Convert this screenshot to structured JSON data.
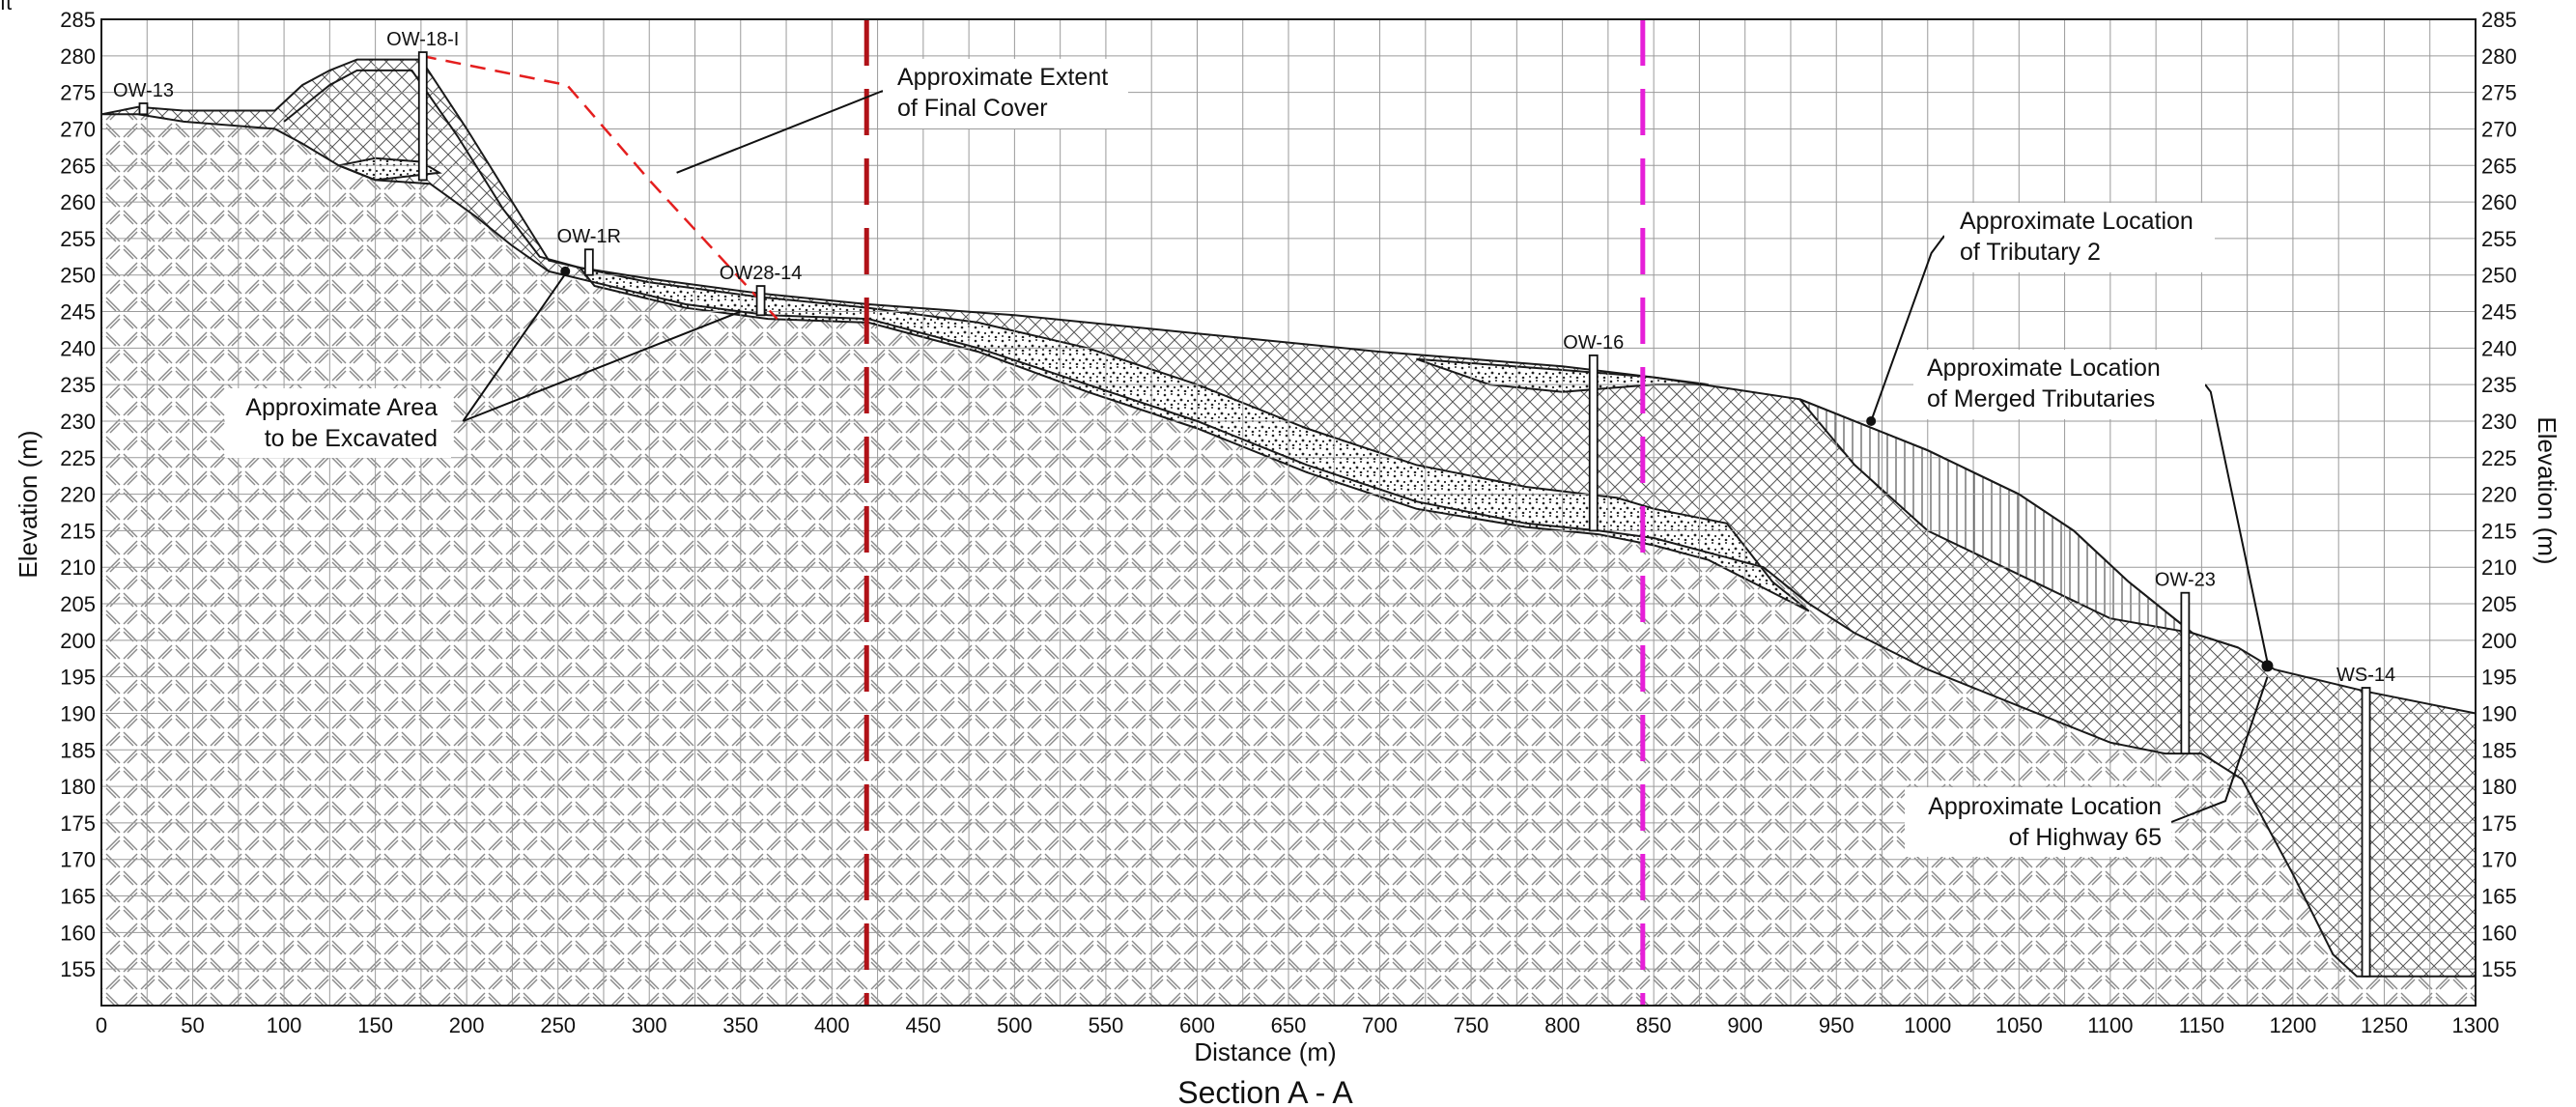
{
  "figure": {
    "caption": "Section A - A",
    "corner_unit": "ft",
    "xlabel": "Distance (m)",
    "ylabel_left": "Elevation (m)",
    "ylabel_right": "Elevation (m)"
  },
  "chart_data": {
    "type": "cross-section",
    "xlim": [
      0,
      1300
    ],
    "ylim": [
      150,
      285
    ],
    "x_ticks": [
      0,
      50,
      100,
      150,
      200,
      250,
      300,
      350,
      400,
      450,
      500,
      550,
      600,
      650,
      700,
      750,
      800,
      850,
      900,
      950,
      1000,
      1050,
      1100,
      1150,
      1200,
      1250,
      1300
    ],
    "y_ticks": [
      155,
      160,
      165,
      170,
      175,
      180,
      185,
      190,
      195,
      200,
      205,
      210,
      215,
      220,
      225,
      230,
      235,
      240,
      245,
      250,
      255,
      260,
      265,
      270,
      275,
      280,
      285
    ],
    "grid": true,
    "ground_surface": [
      [
        0,
        272
      ],
      [
        20,
        273
      ],
      [
        45,
        272.5
      ],
      [
        95,
        272.5
      ],
      [
        110,
        276
      ],
      [
        125,
        278
      ],
      [
        140,
        279.5
      ],
      [
        175,
        279.5
      ],
      [
        200,
        270
      ],
      [
        225,
        260
      ],
      [
        245,
        252
      ],
      [
        262,
        251
      ],
      [
        300,
        249.5
      ],
      [
        360,
        247.5
      ],
      [
        420,
        246
      ],
      [
        500,
        244.5
      ],
      [
        600,
        242
      ],
      [
        700,
        239.5
      ],
      [
        800,
        237.5
      ],
      [
        850,
        236
      ],
      [
        890,
        234.5
      ],
      [
        930,
        233
      ],
      [
        970,
        229
      ],
      [
        1000,
        226
      ],
      [
        1050,
        220
      ],
      [
        1080,
        215
      ],
      [
        1110,
        208
      ],
      [
        1145,
        201
      ],
      [
        1170,
        199
      ],
      [
        1190,
        196
      ],
      [
        1240,
        193
      ],
      [
        1300,
        190
      ]
    ],
    "fill_base": [
      [
        0,
        272
      ],
      [
        20,
        272
      ],
      [
        45,
        271
      ],
      [
        95,
        270
      ],
      [
        110,
        268
      ],
      [
        130,
        265
      ],
      [
        150,
        263
      ],
      [
        180,
        262.5
      ],
      [
        205,
        258
      ],
      [
        225,
        254
      ],
      [
        245,
        250.5
      ],
      [
        270,
        249
      ],
      [
        320,
        246
      ],
      [
        365,
        244.5
      ],
      [
        420,
        244
      ],
      [
        480,
        240
      ],
      [
        540,
        235
      ],
      [
        600,
        230
      ],
      [
        660,
        224
      ],
      [
        720,
        219
      ],
      [
        780,
        216
      ],
      [
        820,
        215
      ],
      [
        850,
        214
      ],
      [
        880,
        212
      ],
      [
        910,
        210
      ],
      [
        935,
        205
      ],
      [
        960,
        201
      ],
      [
        1000,
        196
      ],
      [
        1050,
        191
      ],
      [
        1100,
        186
      ],
      [
        1130,
        184.5
      ],
      [
        1150,
        184.5
      ],
      [
        1172,
        181
      ],
      [
        1200,
        168
      ],
      [
        1222,
        157
      ],
      [
        1235,
        154
      ],
      [
        1300,
        154
      ]
    ],
    "sand_upper": [
      [
        130,
        265
      ],
      [
        150,
        266
      ],
      [
        175,
        265.5
      ],
      [
        185,
        264
      ],
      [
        150,
        263
      ],
      [
        130,
        265
      ]
    ],
    "sand_layer": [
      [
        262,
        251
      ],
      [
        300,
        249
      ],
      [
        360,
        247
      ],
      [
        420,
        245.5
      ],
      [
        480,
        243.5
      ],
      [
        540,
        240
      ],
      [
        600,
        235
      ],
      [
        660,
        229
      ],
      [
        720,
        224
      ],
      [
        780,
        221
      ],
      [
        830,
        219.5
      ],
      [
        850,
        218
      ],
      [
        890,
        216
      ],
      [
        915,
        208
      ],
      [
        935,
        204
      ],
      [
        880,
        211
      ],
      [
        850,
        213
      ],
      [
        820,
        214.5
      ],
      [
        780,
        215.5
      ],
      [
        720,
        218
      ],
      [
        660,
        223
      ],
      [
        600,
        229
      ],
      [
        540,
        234
      ],
      [
        480,
        239.5
      ],
      [
        420,
        243.5
      ],
      [
        365,
        244
      ],
      [
        320,
        245.5
      ],
      [
        270,
        248.5
      ],
      [
        262,
        251
      ]
    ],
    "sand_pond": [
      [
        720,
        238.5
      ],
      [
        800,
        237
      ],
      [
        850,
        236
      ],
      [
        880,
        235
      ],
      [
        850,
        235
      ],
      [
        800,
        234
      ],
      [
        760,
        235
      ],
      [
        720,
        238.5
      ]
    ],
    "tributary_wedge": [
      [
        930,
        233
      ],
      [
        970,
        229
      ],
      [
        1000,
        226
      ],
      [
        1050,
        220
      ],
      [
        1080,
        215
      ],
      [
        1110,
        208
      ],
      [
        1145,
        201
      ],
      [
        1170,
        199
      ],
      [
        1145,
        201
      ],
      [
        1100,
        203
      ],
      [
        1050,
        209
      ],
      [
        1000,
        215
      ],
      [
        960,
        224
      ],
      [
        930,
        233
      ]
    ],
    "final_cover_extent": [
      [
        175,
        280
      ],
      [
        255,
        276
      ],
      [
        300,
        263
      ],
      [
        370,
        244
      ]
    ],
    "vertical_markers": [
      {
        "x": 419,
        "color": "#b01218",
        "style": "dashed"
      },
      {
        "x": 844,
        "color": "#e61fd8",
        "style": "dashed"
      }
    ],
    "wells": [
      {
        "name": "OW-13",
        "x": 23,
        "top": 273.5,
        "bottom": 272
      },
      {
        "name": "OW-18-I",
        "x": 176,
        "top": 280.5,
        "bottom": 263
      },
      {
        "name": "OW-1R",
        "x": 267,
        "top": 253.5,
        "bottom": 250
      },
      {
        "name": "OW28-14",
        "x": 361,
        "top": 248.5,
        "bottom": 244.5
      },
      {
        "name": "OW-16",
        "x": 817,
        "top": 239,
        "bottom": 215
      },
      {
        "name": "OW-23",
        "x": 1141,
        "top": 206.5,
        "bottom": 184.5
      },
      {
        "name": "WS-14",
        "x": 1240,
        "top": 193.5,
        "bottom": 154
      }
    ],
    "annotations": [
      {
        "id": "final-cover",
        "lines": [
          "Approximate Extent",
          "of Final Cover"
        ]
      },
      {
        "id": "excavation",
        "lines": [
          "Approximate Area",
          "to be Excavated"
        ]
      },
      {
        "id": "tributary-2",
        "lines": [
          "Approximate Location",
          "of Tributary 2"
        ]
      },
      {
        "id": "merged",
        "lines": [
          "Approximate Location",
          "of Merged Tributaries"
        ]
      },
      {
        "id": "highway",
        "lines": [
          "Approximate Location",
          "of Highway 65"
        ]
      }
    ]
  }
}
